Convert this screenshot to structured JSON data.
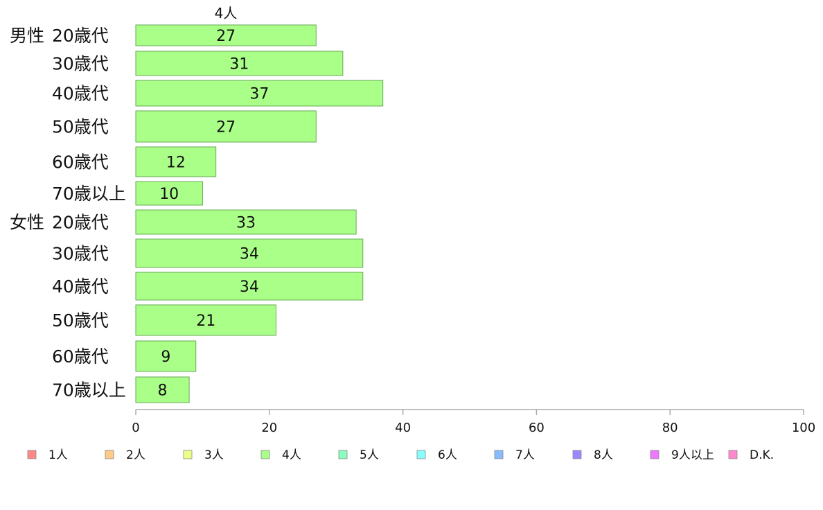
{
  "chart_data": {
    "type": "bar",
    "orientation": "horizontal",
    "series_header": "4人",
    "groups": [
      {
        "label": "男性",
        "categories": [
          "20歳代",
          "30歳代",
          "40歳代",
          "50歳代",
          "60歳代",
          "70歳以上"
        ],
        "values": [
          27,
          31,
          37,
          27,
          12,
          10
        ]
      },
      {
        "label": "女性",
        "categories": [
          "20歳代",
          "30歳代",
          "40歳代",
          "50歳代",
          "60歳代",
          "70歳以上"
        ],
        "values": [
          33,
          34,
          34,
          21,
          9,
          8
        ]
      }
    ],
    "xlim": [
      0,
      100
    ],
    "xticks": [
      "0",
      "20",
      "40",
      "60",
      "80",
      "100"
    ],
    "grid": false,
    "bar_color": "#aaff88",
    "bar_stroke": "#66aa55",
    "legend_position": "bottom",
    "legend": [
      {
        "label": "1人",
        "color": "#ff8888"
      },
      {
        "label": "2人",
        "color": "#ffcc88"
      },
      {
        "label": "3人",
        "color": "#eeff88"
      },
      {
        "label": "4人",
        "color": "#aaff88"
      },
      {
        "label": "5人",
        "color": "#88ffbb"
      },
      {
        "label": "6人",
        "color": "#88ffff"
      },
      {
        "label": "7人",
        "color": "#88bbff"
      },
      {
        "label": "8人",
        "color": "#9988ff"
      },
      {
        "label": "9人以上",
        "color": "#ee77ff"
      },
      {
        "label": "D.K.",
        "color": "#ff88cc"
      }
    ]
  }
}
